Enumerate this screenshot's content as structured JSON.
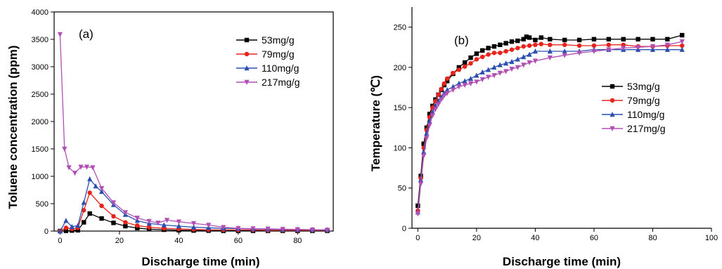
{
  "chart_data": [
    {
      "type": "line",
      "panel_label": "(a)",
      "xlabel": "Discharge time (min)",
      "ylabel": "Toluene concentration (ppm)",
      "xlim": [
        -2,
        92
      ],
      "ylim": [
        0,
        4000
      ],
      "xticks": [
        0,
        20,
        40,
        60,
        80
      ],
      "yticks": [
        0,
        500,
        1000,
        1500,
        2000,
        2500,
        3000,
        3500,
        4000
      ],
      "grid": false,
      "legend": "top-right",
      "series": [
        {
          "name": "53mg/g",
          "color": "#000000",
          "marker": "square",
          "x": [
            0,
            2,
            4,
            6,
            8,
            10,
            14,
            18,
            22,
            26,
            30,
            35,
            40,
            45,
            50,
            55,
            60,
            65,
            70,
            75,
            80,
            85,
            90
          ],
          "y": [
            0,
            5,
            10,
            15,
            160,
            320,
            230,
            150,
            90,
            55,
            35,
            25,
            15,
            10,
            8,
            5,
            5,
            5,
            5,
            5,
            5,
            5,
            5
          ]
        },
        {
          "name": "79mg/g",
          "color": "#e8231a",
          "marker": "circle",
          "x": [
            0,
            2,
            4,
            6,
            8,
            10,
            14,
            18,
            22,
            26,
            30,
            35,
            40,
            45,
            50,
            55,
            60,
            65,
            70,
            75,
            80,
            85,
            90
          ],
          "y": [
            0,
            60,
            40,
            60,
            380,
            700,
            460,
            270,
            160,
            100,
            70,
            50,
            40,
            30,
            25,
            20,
            20,
            20,
            15,
            15,
            15,
            15,
            15
          ]
        },
        {
          "name": "110mg/g",
          "color": "#2a4fb0",
          "marker": "triangle-up",
          "x": [
            0,
            2,
            4,
            6,
            8,
            10,
            12,
            14,
            18,
            22,
            26,
            30,
            35,
            40,
            45,
            50,
            55,
            60,
            65,
            70,
            75,
            80,
            85,
            90
          ],
          "y": [
            0,
            190,
            80,
            100,
            520,
            950,
            820,
            720,
            480,
            300,
            190,
            140,
            110,
            90,
            70,
            60,
            50,
            45,
            40,
            35,
            30,
            30,
            25,
            25
          ]
        },
        {
          "name": "217mg/g",
          "color": "#b14fb5",
          "marker": "triangle-down",
          "x": [
            0,
            1.5,
            3,
            5,
            7,
            9,
            11,
            14,
            18,
            22,
            26,
            30,
            33,
            36,
            40,
            45,
            50,
            55,
            60,
            65,
            70,
            75,
            80,
            85,
            90
          ],
          "y": [
            3590,
            1500,
            1160,
            1060,
            1170,
            1170,
            1160,
            780,
            520,
            340,
            240,
            180,
            150,
            200,
            170,
            140,
            110,
            70,
            50,
            45,
            40,
            35,
            30,
            25,
            20
          ]
        }
      ]
    },
    {
      "type": "line",
      "panel_label": "(b)",
      "xlabel": "Discharge time (min)",
      "ylabel": "Temperature (℃)",
      "xlim": [
        -2,
        100
      ],
      "ylim": [
        0,
        275
      ],
      "xticks": [
        0,
        20,
        40,
        60,
        80,
        100
      ],
      "yticks": [
        0,
        50,
        100,
        150,
        200,
        250
      ],
      "grid": false,
      "legend": "right",
      "series": [
        {
          "name": "53mg/g",
          "color": "#000000",
          "marker": "square",
          "x": [
            0,
            1,
            2,
            3,
            4,
            5,
            6,
            7,
            8,
            9,
            10,
            12,
            14,
            16,
            18,
            20,
            22,
            24,
            26,
            28,
            30,
            32,
            34,
            36,
            37,
            38,
            40,
            42,
            45,
            50,
            55,
            60,
            65,
            70,
            75,
            80,
            85,
            90
          ],
          "y": [
            28,
            65,
            105,
            125,
            142,
            152,
            160,
            166,
            172,
            178,
            183,
            192,
            200,
            206,
            212,
            217,
            221,
            224,
            226,
            228,
            230,
            232,
            233,
            235,
            238,
            237,
            234,
            237,
            235,
            234,
            234,
            235,
            235,
            235,
            235,
            235,
            235,
            240
          ]
        },
        {
          "name": "79mg/g",
          "color": "#e8231a",
          "marker": "circle",
          "x": [
            0,
            1,
            2,
            3,
            4,
            5,
            6,
            7,
            8,
            9,
            10,
            12,
            14,
            16,
            18,
            20,
            22,
            24,
            26,
            28,
            30,
            32,
            34,
            36,
            38,
            40,
            42,
            45,
            50,
            55,
            60,
            65,
            70,
            75,
            80,
            85,
            90
          ],
          "y": [
            22,
            62,
            100,
            122,
            138,
            150,
            158,
            166,
            173,
            180,
            186,
            193,
            197,
            201,
            205,
            210,
            213,
            216,
            218,
            218,
            220,
            222,
            224,
            226,
            227,
            228,
            229,
            228,
            228,
            227,
            227,
            228,
            228,
            226,
            226,
            227,
            227
          ]
        },
        {
          "name": "110mg/g",
          "color": "#2a4fb0",
          "marker": "triangle-up",
          "x": [
            0,
            1,
            2,
            3,
            4,
            5,
            6,
            7,
            8,
            9,
            10,
            12,
            14,
            16,
            18,
            20,
            22,
            24,
            26,
            28,
            30,
            32,
            34,
            36,
            38,
            40,
            45,
            50,
            55,
            60,
            65,
            70,
            75,
            80,
            85,
            90
          ],
          "y": [
            20,
            60,
            95,
            118,
            133,
            144,
            152,
            158,
            163,
            168,
            172,
            176,
            180,
            183,
            186,
            190,
            194,
            197,
            200,
            203,
            205,
            207,
            210,
            213,
            216,
            220,
            220,
            220,
            220,
            222,
            222,
            222,
            222,
            222,
            222,
            222
          ]
        },
        {
          "name": "217mg/g",
          "color": "#b14fb5",
          "marker": "triangle-down",
          "x": [
            0,
            1,
            2,
            3,
            4,
            5,
            6,
            7,
            8,
            9,
            10,
            12,
            14,
            16,
            18,
            20,
            22,
            24,
            26,
            28,
            30,
            32,
            34,
            36,
            38,
            40,
            45,
            50,
            55,
            60,
            65,
            70,
            75,
            80,
            85,
            90
          ],
          "y": [
            18,
            55,
            90,
            112,
            128,
            140,
            148,
            154,
            160,
            165,
            168,
            172,
            176,
            178,
            180,
            182,
            185,
            188,
            190,
            193,
            195,
            198,
            200,
            203,
            206,
            208,
            212,
            215,
            218,
            220,
            222,
            224,
            225,
            226,
            228,
            232
          ]
        }
      ]
    }
  ]
}
